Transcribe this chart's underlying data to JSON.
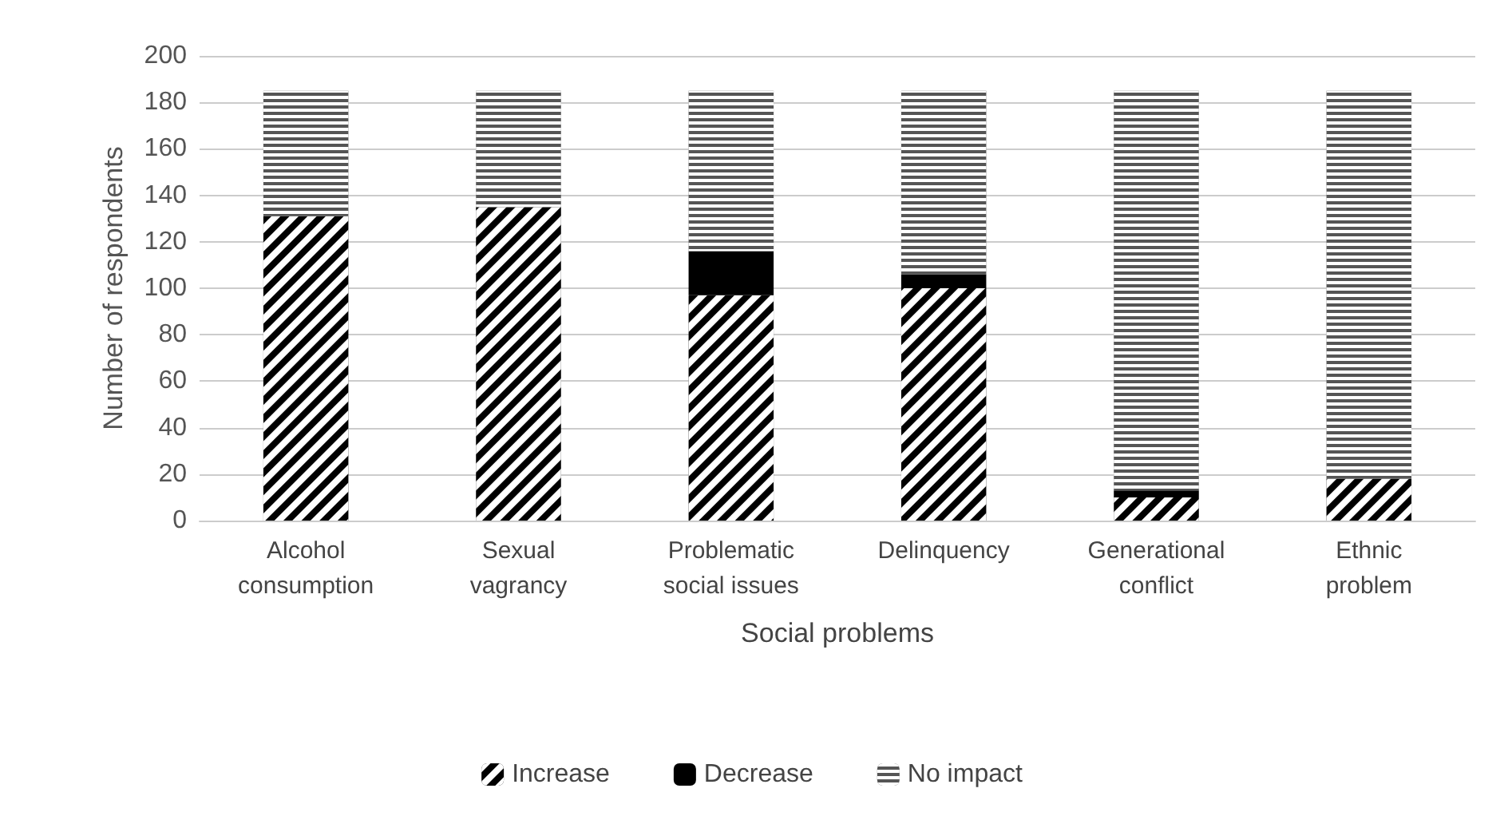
{
  "chart_data": {
    "type": "bar",
    "stacked": true,
    "xlabel": "Social problems",
    "ylabel": "Number of respondents",
    "categories": [
      "Alcohol consumption",
      "Sexual vagrancy",
      "Problematic social issues",
      "Delinquency",
      "Generational conflict",
      "Ethnic problem"
    ],
    "series": [
      {
        "name": "Increase",
        "color": "#000000",
        "values": [
          131,
          135,
          97,
          100,
          10,
          18
        ]
      },
      {
        "name": "Decrease",
        "color": "#000000",
        "values": [
          0,
          0,
          19,
          6,
          3,
          0
        ]
      },
      {
        "name": "No impact",
        "color": "#555555",
        "values": [
          54,
          50,
          69,
          79,
          172,
          167
        ]
      }
    ],
    "ylim": [
      0,
      200
    ],
    "yticks": [
      0,
      20,
      40,
      60,
      80,
      100,
      120,
      140,
      160,
      180,
      200
    ],
    "grid": "y",
    "legend": "bottom"
  }
}
